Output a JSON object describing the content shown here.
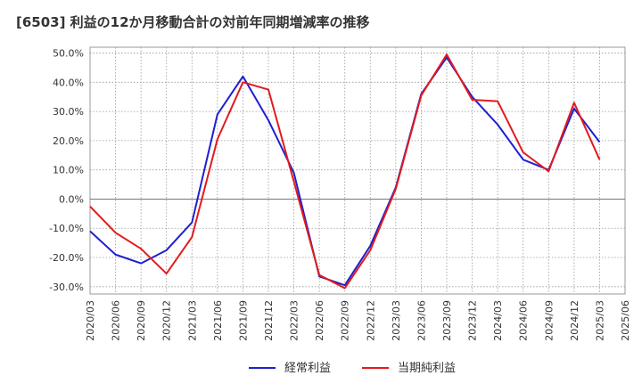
{
  "chart_data": {
    "type": "line",
    "title": "[6503]  利益の12か月移動合計の対前年同期増減率の推移",
    "xlabel": "",
    "ylabel": "",
    "ylim": [
      -32.5,
      52.0
    ],
    "yticks": [
      -30,
      -20,
      -10,
      0,
      10,
      20,
      30,
      40,
      50
    ],
    "ytick_labels": [
      "-30.0%",
      "-20.0%",
      "-10.0%",
      "0.0%",
      "10.0%",
      "20.0%",
      "30.0%",
      "40.0%",
      "50.0%"
    ],
    "x": [
      "2020/03",
      "2020/06",
      "2020/09",
      "2020/12",
      "2021/03",
      "2021/06",
      "2021/09",
      "2021/12",
      "2022/03",
      "2022/06",
      "2022/09",
      "2022/12",
      "2023/03",
      "2023/06",
      "2023/09",
      "2023/12",
      "2024/03",
      "2024/06",
      "2024/09",
      "2024/12",
      "2025/03",
      "2025/06"
    ],
    "grid": true,
    "legend_position": "bottom",
    "series": [
      {
        "name": "経常利益",
        "color": "#1f1fd0",
        "values": [
          -11.0,
          -19.0,
          -22.0,
          -17.5,
          -8.0,
          29.0,
          42.0,
          27.0,
          9.0,
          -26.5,
          -29.5,
          -16.0,
          4.0,
          36.0,
          48.5,
          35.0,
          25.5,
          13.5,
          10.0,
          31.0,
          19.5,
          null
        ]
      },
      {
        "name": "当期純利益",
        "color": "#e31a1c",
        "values": [
          -2.5,
          -11.5,
          -17.0,
          -25.5,
          -13.0,
          20.5,
          40.0,
          37.5,
          6.0,
          -26.0,
          -30.5,
          -17.5,
          3.5,
          35.5,
          49.5,
          34.0,
          33.5,
          16.0,
          9.5,
          33.0,
          13.5,
          null
        ]
      }
    ]
  }
}
